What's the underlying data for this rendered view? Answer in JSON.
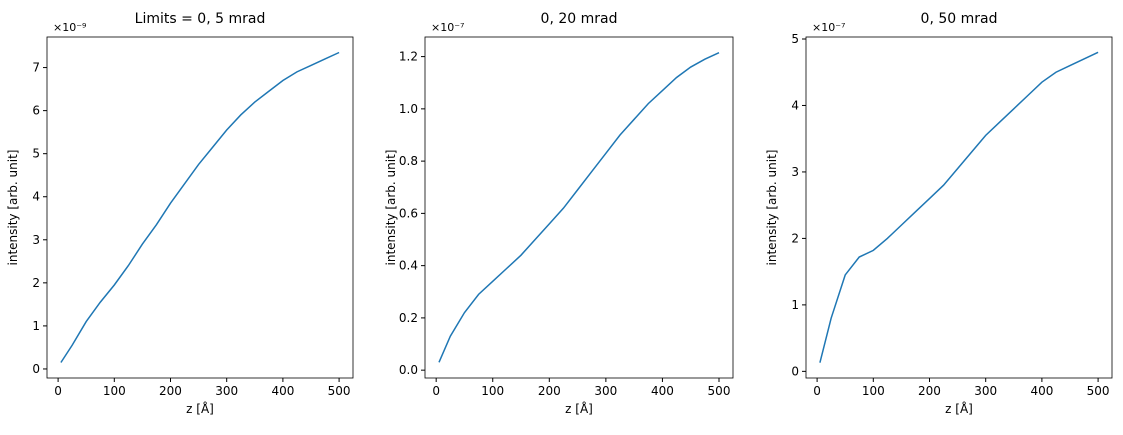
{
  "chart_data": [
    {
      "type": "line",
      "title": "Limits = 0, 5 mrad",
      "x_label": "z [Å]",
      "y_label": "intensity [arb. unit]",
      "y_offset_label": "×10⁻⁹",
      "color": "#1f77b4",
      "x": [
        5,
        25,
        50,
        75,
        100,
        125,
        150,
        175,
        200,
        225,
        250,
        275,
        300,
        325,
        350,
        375,
        400,
        425,
        450,
        475,
        500
      ],
      "values": [
        0.15,
        0.55,
        1.1,
        1.55,
        1.95,
        2.4,
        2.9,
        3.35,
        3.85,
        4.3,
        4.75,
        5.15,
        5.55,
        5.9,
        6.2,
        6.45,
        6.7,
        6.9,
        7.05,
        7.2,
        7.35
      ],
      "xlim": [
        -19.75,
        524.75
      ],
      "xticks": [
        0,
        100,
        200,
        300,
        400,
        500
      ],
      "ylim": [
        -0.21,
        7.71
      ],
      "yticks": [
        0,
        1,
        2,
        3,
        4,
        5,
        6,
        7
      ]
    },
    {
      "type": "line",
      "title": "0, 20 mrad",
      "x_label": "z [Å]",
      "y_label": "intensity [arb. unit]",
      "y_offset_label": "×10⁻⁷",
      "color": "#1f77b4",
      "x": [
        5,
        25,
        50,
        75,
        100,
        125,
        150,
        175,
        200,
        225,
        250,
        275,
        300,
        325,
        350,
        375,
        400,
        425,
        450,
        475,
        500
      ],
      "values": [
        0.03,
        0.13,
        0.22,
        0.29,
        0.34,
        0.39,
        0.44,
        0.5,
        0.56,
        0.62,
        0.69,
        0.76,
        0.83,
        0.9,
        0.96,
        1.02,
        1.07,
        1.12,
        1.16,
        1.19,
        1.215
      ],
      "xlim": [
        -19.75,
        524.75
      ],
      "xticks": [
        0,
        100,
        200,
        300,
        400,
        500
      ],
      "ylim": [
        -0.03,
        1.275
      ],
      "yticks": [
        {
          "value": 0,
          "label": "0.0"
        },
        0.2,
        0.4,
        0.6,
        0.8,
        {
          "value": 1,
          "label": "1.0"
        },
        1.2
      ]
    },
    {
      "type": "line",
      "title": "0, 50 mrad",
      "x_label": "z [Å]",
      "y_label": "intensity [arb. unit]",
      "y_offset_label": "×10⁻⁷",
      "color": "#1f77b4",
      "x": [
        5,
        25,
        50,
        75,
        100,
        125,
        150,
        175,
        200,
        225,
        250,
        275,
        300,
        325,
        350,
        375,
        400,
        425,
        450,
        475,
        500
      ],
      "values": [
        0.13,
        0.8,
        1.45,
        1.72,
        1.82,
        2.0,
        2.2,
        2.4,
        2.6,
        2.8,
        3.05,
        3.3,
        3.55,
        3.75,
        3.95,
        4.15,
        4.35,
        4.5,
        4.6,
        4.7,
        4.8
      ],
      "xlim": [
        -19.75,
        524.75
      ],
      "xticks": [
        0,
        100,
        200,
        300,
        400,
        500
      ],
      "ylim": [
        -0.1,
        5.03
      ],
      "yticks": [
        0,
        1,
        2,
        3,
        4,
        5
      ]
    }
  ]
}
